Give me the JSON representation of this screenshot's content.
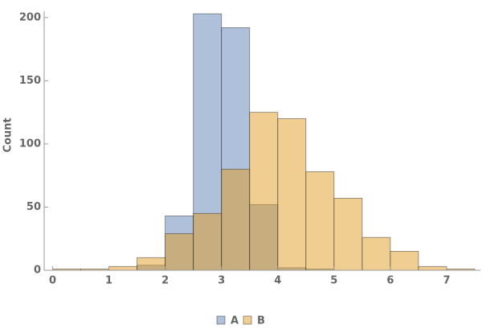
{
  "chart_data": {
    "type": "histogram",
    "y_label": "Count",
    "bins": [
      0,
      0.5,
      1,
      1.5,
      2,
      2.5,
      3,
      3.5,
      4,
      4.5,
      5,
      5.5,
      6,
      6.5,
      7,
      7.5
    ],
    "series": [
      {
        "name": "A",
        "color": "#5e81b5",
        "values": [
          0,
          0,
          0,
          4,
          43,
          203,
          192,
          52,
          2,
          1,
          0,
          0,
          0,
          0,
          0
        ]
      },
      {
        "name": "B",
        "color": "#e19c24",
        "values": [
          1,
          1,
          3,
          10,
          29,
          45,
          80,
          125,
          120,
          78,
          57,
          26,
          15,
          3,
          1
        ]
      }
    ],
    "xlim": [
      -0.15,
      7.6
    ],
    "ylim": [
      0,
      205
    ],
    "xticks": [
      0,
      1,
      2,
      3,
      4,
      5,
      6,
      7
    ],
    "yticks": [
      0,
      50,
      100,
      150,
      200
    ],
    "legend": "bottom"
  }
}
